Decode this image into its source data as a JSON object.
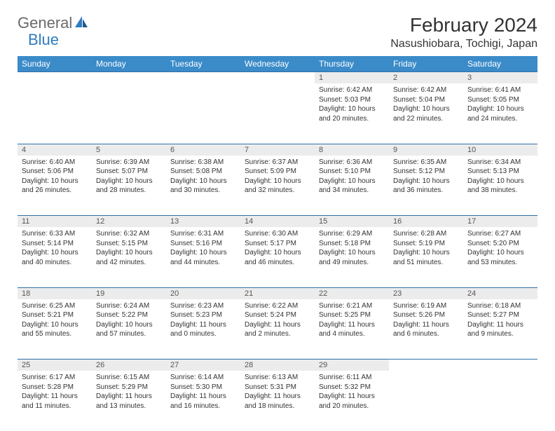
{
  "logo": {
    "text1": "General",
    "text2": "Blue"
  },
  "title": "February 2024",
  "location": "Nasushiobara, Tochigi, Japan",
  "colors": {
    "header_bg": "#3b8bc9",
    "header_text": "#ffffff",
    "daynum_bg": "#ececec",
    "border": "#2f6fa8",
    "logo_gray": "#6a6a6a",
    "logo_blue": "#2f7bbf"
  },
  "weekdays": [
    "Sunday",
    "Monday",
    "Tuesday",
    "Wednesday",
    "Thursday",
    "Friday",
    "Saturday"
  ],
  "weeks": [
    [
      null,
      null,
      null,
      null,
      {
        "n": "1",
        "sr": "Sunrise: 6:42 AM",
        "ss": "Sunset: 5:03 PM",
        "dl": "Daylight: 10 hours and 20 minutes."
      },
      {
        "n": "2",
        "sr": "Sunrise: 6:42 AM",
        "ss": "Sunset: 5:04 PM",
        "dl": "Daylight: 10 hours and 22 minutes."
      },
      {
        "n": "3",
        "sr": "Sunrise: 6:41 AM",
        "ss": "Sunset: 5:05 PM",
        "dl": "Daylight: 10 hours and 24 minutes."
      }
    ],
    [
      {
        "n": "4",
        "sr": "Sunrise: 6:40 AM",
        "ss": "Sunset: 5:06 PM",
        "dl": "Daylight: 10 hours and 26 minutes."
      },
      {
        "n": "5",
        "sr": "Sunrise: 6:39 AM",
        "ss": "Sunset: 5:07 PM",
        "dl": "Daylight: 10 hours and 28 minutes."
      },
      {
        "n": "6",
        "sr": "Sunrise: 6:38 AM",
        "ss": "Sunset: 5:08 PM",
        "dl": "Daylight: 10 hours and 30 minutes."
      },
      {
        "n": "7",
        "sr": "Sunrise: 6:37 AM",
        "ss": "Sunset: 5:09 PM",
        "dl": "Daylight: 10 hours and 32 minutes."
      },
      {
        "n": "8",
        "sr": "Sunrise: 6:36 AM",
        "ss": "Sunset: 5:10 PM",
        "dl": "Daylight: 10 hours and 34 minutes."
      },
      {
        "n": "9",
        "sr": "Sunrise: 6:35 AM",
        "ss": "Sunset: 5:12 PM",
        "dl": "Daylight: 10 hours and 36 minutes."
      },
      {
        "n": "10",
        "sr": "Sunrise: 6:34 AM",
        "ss": "Sunset: 5:13 PM",
        "dl": "Daylight: 10 hours and 38 minutes."
      }
    ],
    [
      {
        "n": "11",
        "sr": "Sunrise: 6:33 AM",
        "ss": "Sunset: 5:14 PM",
        "dl": "Daylight: 10 hours and 40 minutes."
      },
      {
        "n": "12",
        "sr": "Sunrise: 6:32 AM",
        "ss": "Sunset: 5:15 PM",
        "dl": "Daylight: 10 hours and 42 minutes."
      },
      {
        "n": "13",
        "sr": "Sunrise: 6:31 AM",
        "ss": "Sunset: 5:16 PM",
        "dl": "Daylight: 10 hours and 44 minutes."
      },
      {
        "n": "14",
        "sr": "Sunrise: 6:30 AM",
        "ss": "Sunset: 5:17 PM",
        "dl": "Daylight: 10 hours and 46 minutes."
      },
      {
        "n": "15",
        "sr": "Sunrise: 6:29 AM",
        "ss": "Sunset: 5:18 PM",
        "dl": "Daylight: 10 hours and 49 minutes."
      },
      {
        "n": "16",
        "sr": "Sunrise: 6:28 AM",
        "ss": "Sunset: 5:19 PM",
        "dl": "Daylight: 10 hours and 51 minutes."
      },
      {
        "n": "17",
        "sr": "Sunrise: 6:27 AM",
        "ss": "Sunset: 5:20 PM",
        "dl": "Daylight: 10 hours and 53 minutes."
      }
    ],
    [
      {
        "n": "18",
        "sr": "Sunrise: 6:25 AM",
        "ss": "Sunset: 5:21 PM",
        "dl": "Daylight: 10 hours and 55 minutes."
      },
      {
        "n": "19",
        "sr": "Sunrise: 6:24 AM",
        "ss": "Sunset: 5:22 PM",
        "dl": "Daylight: 10 hours and 57 minutes."
      },
      {
        "n": "20",
        "sr": "Sunrise: 6:23 AM",
        "ss": "Sunset: 5:23 PM",
        "dl": "Daylight: 11 hours and 0 minutes."
      },
      {
        "n": "21",
        "sr": "Sunrise: 6:22 AM",
        "ss": "Sunset: 5:24 PM",
        "dl": "Daylight: 11 hours and 2 minutes."
      },
      {
        "n": "22",
        "sr": "Sunrise: 6:21 AM",
        "ss": "Sunset: 5:25 PM",
        "dl": "Daylight: 11 hours and 4 minutes."
      },
      {
        "n": "23",
        "sr": "Sunrise: 6:19 AM",
        "ss": "Sunset: 5:26 PM",
        "dl": "Daylight: 11 hours and 6 minutes."
      },
      {
        "n": "24",
        "sr": "Sunrise: 6:18 AM",
        "ss": "Sunset: 5:27 PM",
        "dl": "Daylight: 11 hours and 9 minutes."
      }
    ],
    [
      {
        "n": "25",
        "sr": "Sunrise: 6:17 AM",
        "ss": "Sunset: 5:28 PM",
        "dl": "Daylight: 11 hours and 11 minutes."
      },
      {
        "n": "26",
        "sr": "Sunrise: 6:15 AM",
        "ss": "Sunset: 5:29 PM",
        "dl": "Daylight: 11 hours and 13 minutes."
      },
      {
        "n": "27",
        "sr": "Sunrise: 6:14 AM",
        "ss": "Sunset: 5:30 PM",
        "dl": "Daylight: 11 hours and 16 minutes."
      },
      {
        "n": "28",
        "sr": "Sunrise: 6:13 AM",
        "ss": "Sunset: 5:31 PM",
        "dl": "Daylight: 11 hours and 18 minutes."
      },
      {
        "n": "29",
        "sr": "Sunrise: 6:11 AM",
        "ss": "Sunset: 5:32 PM",
        "dl": "Daylight: 11 hours and 20 minutes."
      },
      null,
      null
    ]
  ]
}
